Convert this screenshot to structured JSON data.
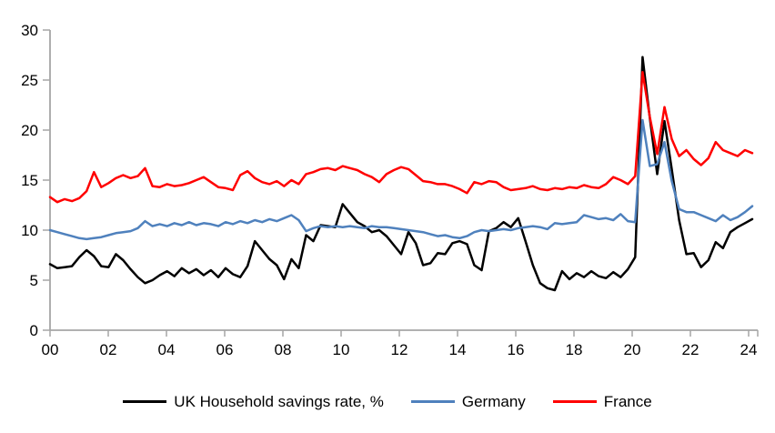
{
  "chart_data": {
    "type": "line",
    "title": "",
    "xlabel": "",
    "ylabel": "",
    "x_tick_labels": [
      "00",
      "02",
      "04",
      "06",
      "08",
      "10",
      "12",
      "14",
      "16",
      "18",
      "20",
      "22",
      "24"
    ],
    "y_ticks": [
      0,
      5,
      10,
      15,
      20,
      25,
      30
    ],
    "ylim": [
      0,
      30
    ],
    "grid": false,
    "legend_position": "bottom",
    "axis_color": "#a6a6a6",
    "frequency": "quarterly",
    "x_range_note": "2000Q1 to 2024Q1",
    "series": [
      {
        "name": "UK Household savings rate, %",
        "color": "#000000",
        "values": [
          6.6,
          6.2,
          6.3,
          6.4,
          7.3,
          8.0,
          7.4,
          6.4,
          6.3,
          7.6,
          7.0,
          6.1,
          5.3,
          4.7,
          5.0,
          5.5,
          5.9,
          5.4,
          6.2,
          5.7,
          6.1,
          5.5,
          6.0,
          5.3,
          6.2,
          5.6,
          5.3,
          6.4,
          8.9,
          8.0,
          7.1,
          6.5,
          5.1,
          7.1,
          6.2,
          9.5,
          8.9,
          10.5,
          10.4,
          10.3,
          12.6,
          11.7,
          10.8,
          10.4,
          9.8,
          10.0,
          9.4,
          8.5,
          7.6,
          9.8,
          8.7,
          6.5,
          6.7,
          7.7,
          7.6,
          8.7,
          8.9,
          8.6,
          6.5,
          6.0,
          9.9,
          10.2,
          10.8,
          10.3,
          11.2,
          8.9,
          6.5,
          4.7,
          4.2,
          4.0,
          5.9,
          5.1,
          5.7,
          5.3,
          5.9,
          5.4,
          5.2,
          5.8,
          5.3,
          6.1,
          7.3,
          27.3,
          21.2,
          15.6,
          20.9,
          16.1,
          11.0,
          7.6,
          7.7,
          6.3,
          7.0,
          8.8,
          8.2,
          9.8,
          10.3,
          10.7,
          11.1
        ]
      },
      {
        "name": "Germany",
        "color": "#4f81bd",
        "values": [
          10.0,
          9.8,
          9.6,
          9.4,
          9.2,
          9.1,
          9.2,
          9.3,
          9.5,
          9.7,
          9.8,
          9.9,
          10.2,
          10.9,
          10.4,
          10.6,
          10.4,
          10.7,
          10.5,
          10.8,
          10.5,
          10.7,
          10.6,
          10.4,
          10.8,
          10.6,
          10.9,
          10.7,
          11.0,
          10.8,
          11.1,
          10.9,
          11.2,
          11.5,
          11.0,
          9.9,
          10.2,
          10.4,
          10.3,
          10.4,
          10.3,
          10.4,
          10.3,
          10.2,
          10.4,
          10.3,
          10.3,
          10.2,
          10.1,
          10.0,
          9.9,
          9.8,
          9.6,
          9.4,
          9.5,
          9.3,
          9.2,
          9.4,
          9.8,
          10.0,
          9.9,
          10.0,
          10.1,
          10.0,
          10.2,
          10.3,
          10.4,
          10.3,
          10.1,
          10.7,
          10.6,
          10.7,
          10.8,
          11.5,
          11.3,
          11.1,
          11.2,
          11.0,
          11.6,
          10.9,
          10.8,
          21.0,
          16.4,
          16.6,
          18.8,
          14.9,
          12.1,
          11.8,
          11.8,
          11.5,
          11.2,
          10.9,
          11.5,
          11.0,
          11.3,
          11.8,
          12.4
        ]
      },
      {
        "name": "France",
        "color": "#ff0000",
        "values": [
          13.3,
          12.8,
          13.1,
          12.9,
          13.2,
          13.9,
          15.8,
          14.3,
          14.7,
          15.2,
          15.5,
          15.2,
          15.4,
          16.2,
          14.4,
          14.3,
          14.6,
          14.4,
          14.5,
          14.7,
          15.0,
          15.3,
          14.8,
          14.3,
          14.2,
          14.0,
          15.5,
          15.9,
          15.2,
          14.8,
          14.6,
          14.9,
          14.4,
          15.0,
          14.6,
          15.6,
          15.8,
          16.1,
          16.2,
          16.0,
          16.4,
          16.2,
          16.0,
          15.6,
          15.3,
          14.8,
          15.6,
          16.0,
          16.3,
          16.1,
          15.5,
          14.9,
          14.8,
          14.6,
          14.6,
          14.4,
          14.1,
          13.7,
          14.8,
          14.6,
          14.9,
          14.8,
          14.3,
          14.0,
          14.1,
          14.2,
          14.4,
          14.1,
          14.0,
          14.2,
          14.1,
          14.3,
          14.2,
          14.5,
          14.3,
          14.2,
          14.6,
          15.3,
          15.0,
          14.6,
          15.4,
          25.8,
          21.3,
          17.6,
          22.3,
          19.1,
          17.4,
          18.0,
          17.1,
          16.5,
          17.2,
          18.8,
          18.0,
          17.7,
          17.4,
          18.0,
          17.7
        ]
      }
    ]
  }
}
